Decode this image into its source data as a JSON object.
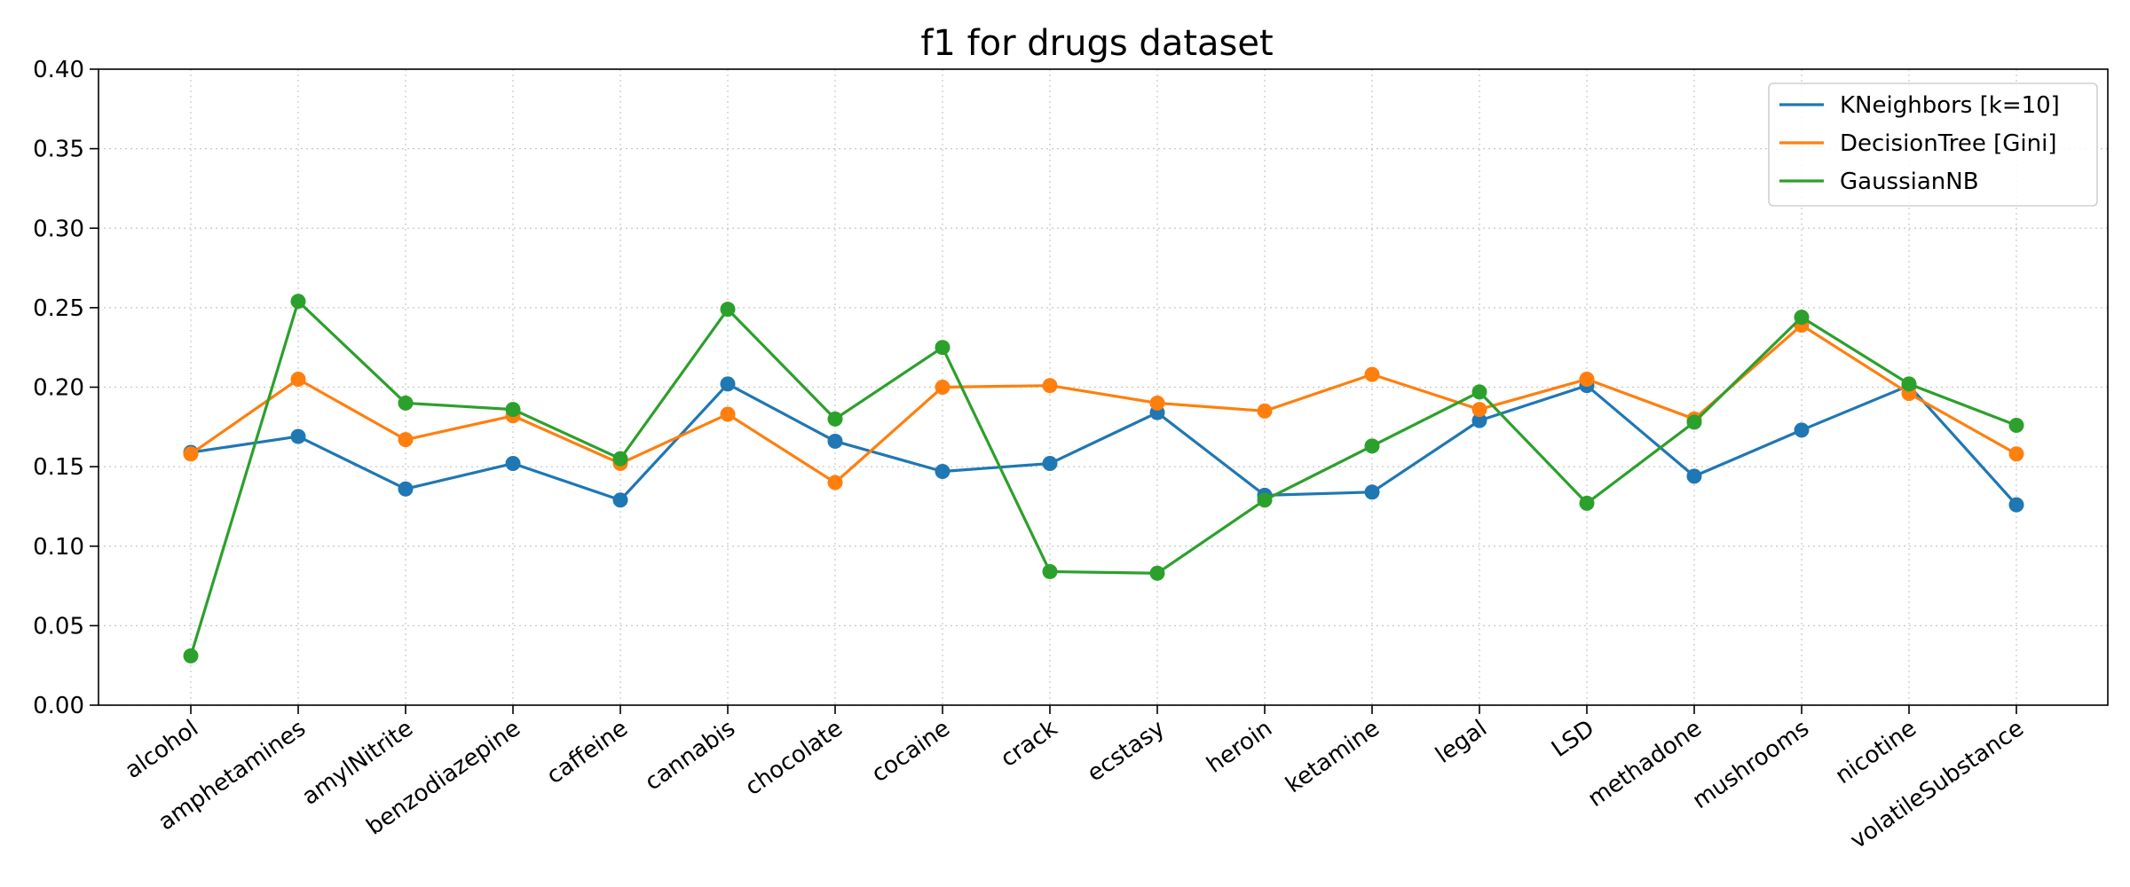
{
  "chart_data": {
    "type": "line",
    "title": "f1 for drugs dataset",
    "xlabel": "",
    "ylabel": "",
    "categories": [
      "alcohol",
      "amphetamines",
      "amylNitrite",
      "benzodiazepine",
      "caffeine",
      "cannabis",
      "chocolate",
      "cocaine",
      "crack",
      "ecstasy",
      "heroin",
      "ketamine",
      "legal",
      "LSD",
      "methadone",
      "mushrooms",
      "nicotine",
      "volatileSubstance"
    ],
    "ylim": [
      0,
      0.4
    ],
    "yticks": [
      "0.00",
      "0.05",
      "0.10",
      "0.15",
      "0.20",
      "0.25",
      "0.30",
      "0.35",
      "0.40"
    ],
    "grid": true,
    "legend_position": "top-right",
    "series": [
      {
        "name": "KNeighbors [k=10]",
        "color": "#1f77b4",
        "values": [
          0.159,
          0.169,
          0.136,
          0.152,
          0.129,
          0.202,
          0.166,
          0.147,
          0.152,
          0.184,
          0.132,
          0.134,
          0.179,
          0.201,
          0.144,
          0.173,
          0.201,
          0.126
        ]
      },
      {
        "name": "DecisionTree [Gini]",
        "color": "#ff7f0e",
        "values": [
          0.158,
          0.205,
          0.167,
          0.182,
          0.152,
          0.183,
          0.14,
          0.2,
          0.201,
          0.19,
          0.185,
          0.208,
          0.186,
          0.205,
          0.18,
          0.239,
          0.196,
          0.158
        ]
      },
      {
        "name": "GaussianNB",
        "color": "#2ca02c",
        "values": [
          0.031,
          0.254,
          0.19,
          0.186,
          0.155,
          0.249,
          0.18,
          0.225,
          0.084,
          0.083,
          0.129,
          0.163,
          0.197,
          0.127,
          0.178,
          0.244,
          0.202,
          0.176
        ]
      }
    ]
  }
}
